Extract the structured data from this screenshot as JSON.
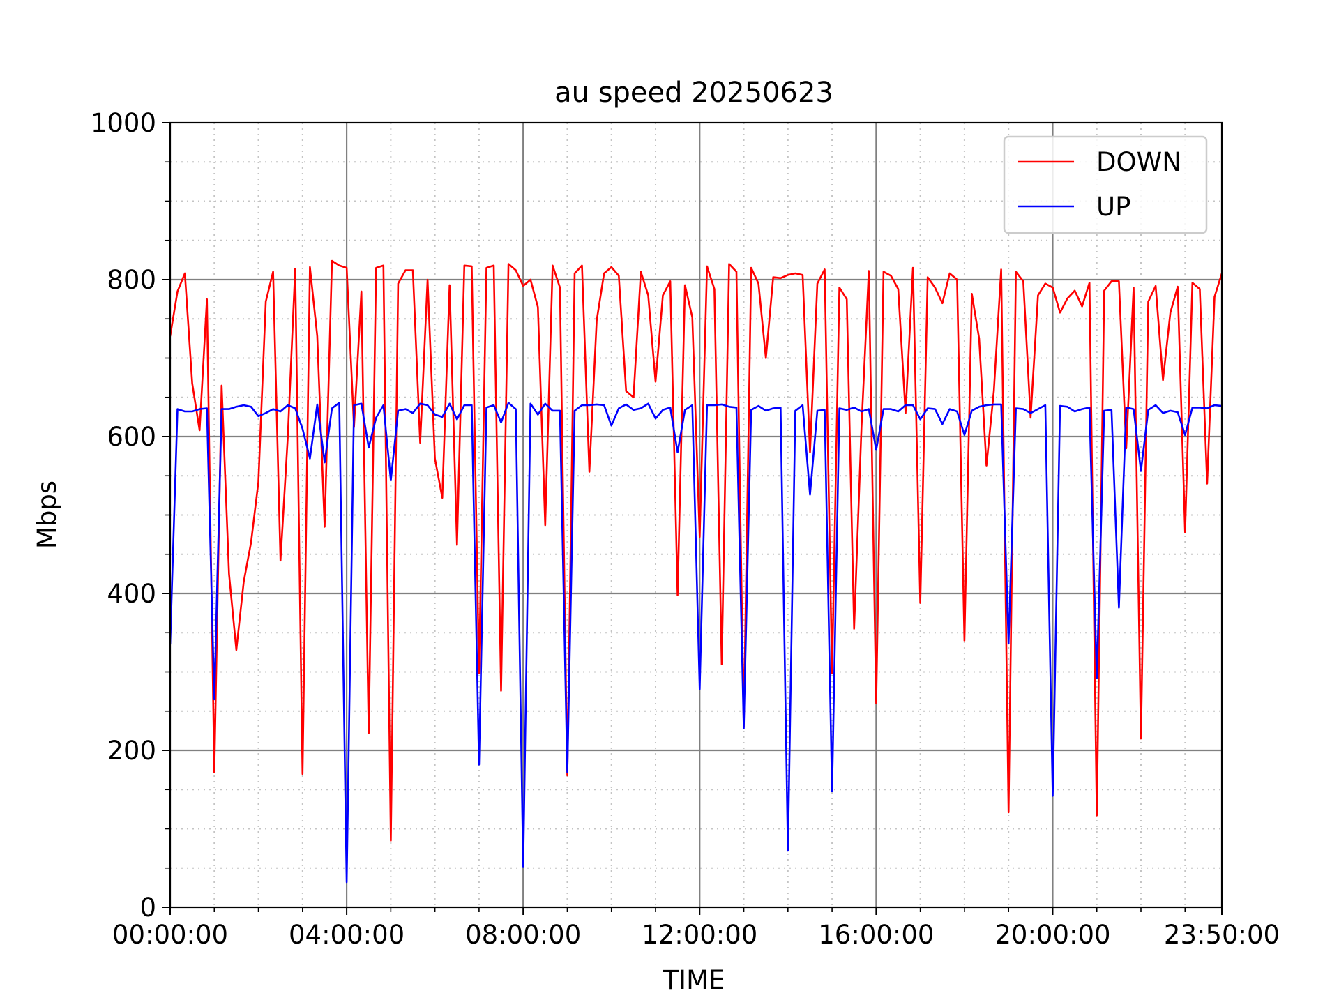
{
  "chart_data": {
    "type": "line",
    "title": "au speed 20250623",
    "xlabel": "TIME",
    "ylabel": "Mbps",
    "ylim": [
      0,
      1000
    ],
    "xlim": [
      0,
      1430
    ],
    "x_ticks": [
      {
        "value": 0,
        "label": "00:00:00"
      },
      {
        "value": 240,
        "label": "04:00:00"
      },
      {
        "value": 480,
        "label": "08:00:00"
      },
      {
        "value": 720,
        "label": "12:00:00"
      },
      {
        "value": 960,
        "label": "16:00:00"
      },
      {
        "value": 1200,
        "label": "20:00:00"
      },
      {
        "value": 1430,
        "label": "23:50:00"
      }
    ],
    "y_ticks": [
      0,
      200,
      400,
      600,
      800,
      1000
    ],
    "grid": "major solid gray, minor dotted",
    "legend": "top-right",
    "x_interval_minutes": 10,
    "series": [
      {
        "name": "DOWN",
        "color": "#ff0000",
        "values": [
          728,
          785,
          808,
          668,
          608,
          775,
          172,
          665,
          425,
          328,
          415,
          465,
          542,
          772,
          810,
          442,
          600,
          814,
          170,
          816,
          728,
          485,
          824,
          818,
          815,
          612,
          785,
          222,
          815,
          818,
          85,
          795,
          812,
          812,
          592,
          800,
          572,
          522,
          793,
          462,
          818,
          817,
          298,
          815,
          818,
          276,
          820,
          812,
          792,
          800,
          765,
          487,
          818,
          790,
          168,
          808,
          818,
          555,
          748,
          808,
          816,
          805,
          658,
          650,
          810,
          780,
          670,
          780,
          798,
          398,
          793,
          752,
          472,
          817,
          788,
          310,
          820,
          810,
          230,
          815,
          795,
          700,
          803,
          802,
          806,
          808,
          806,
          580,
          795,
          813,
          298,
          790,
          775,
          355,
          612,
          811,
          260,
          810,
          805,
          788,
          630,
          815,
          388,
          803,
          790,
          770,
          808,
          800,
          340,
          782,
          725,
          563,
          658,
          813,
          121,
          810,
          798,
          624,
          780,
          795,
          790,
          758,
          776,
          786,
          766,
          796,
          117,
          786,
          798,
          798,
          585,
          790,
          215,
          772,
          792,
          672,
          758,
          791,
          478,
          796,
          788,
          540,
          778,
          808
        ]
      },
      {
        "name": "UP",
        "color": "#0000ff",
        "values": [
          335,
          635,
          632,
          632,
          635,
          636,
          265,
          635,
          635,
          638,
          640,
          638,
          626,
          630,
          635,
          632,
          640,
          636,
          610,
          572,
          641,
          567,
          636,
          643,
          32,
          640,
          642,
          586,
          624,
          640,
          544,
          633,
          635,
          630,
          642,
          640,
          628,
          625,
          642,
          622,
          640,
          640,
          182,
          637,
          640,
          618,
          643,
          635,
          52,
          642,
          628,
          642,
          633,
          633,
          172,
          633,
          640,
          640,
          641,
          640,
          614,
          636,
          641,
          634,
          636,
          642,
          623,
          634,
          637,
          580,
          634,
          640,
          278,
          640,
          640,
          641,
          638,
          637,
          228,
          634,
          639,
          633,
          636,
          637,
          72,
          633,
          640,
          526,
          633,
          634,
          148,
          636,
          634,
          637,
          632,
          635,
          583,
          635,
          635,
          632,
          640,
          640,
          622,
          636,
          635,
          616,
          635,
          632,
          602,
          633,
          638,
          640,
          641,
          641,
          336,
          636,
          635,
          630,
          635,
          640,
          142,
          639,
          638,
          632,
          635,
          637,
          292,
          633,
          634,
          382,
          637,
          635,
          556,
          634,
          640,
          630,
          633,
          631,
          602,
          637,
          637,
          636,
          640,
          639
        ]
      }
    ]
  }
}
